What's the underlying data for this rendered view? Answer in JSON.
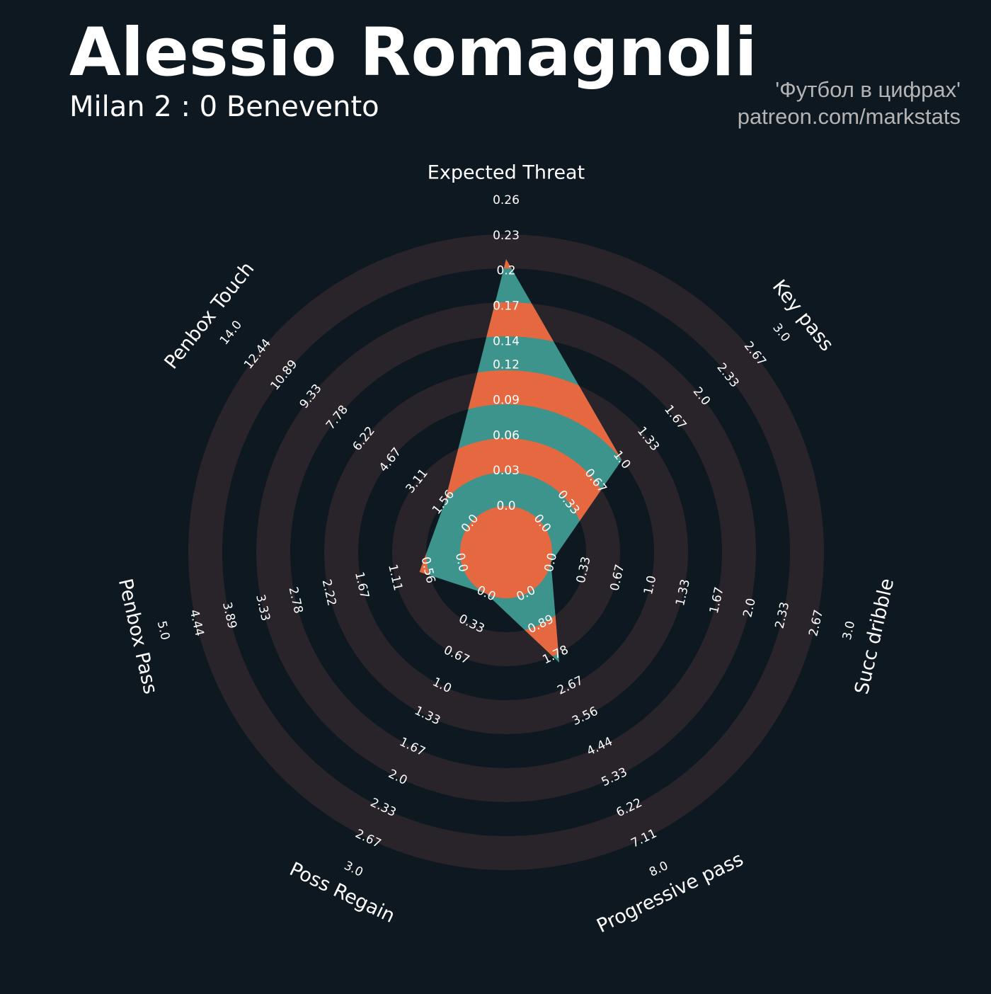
{
  "chart_data": {
    "type": "radar",
    "title": "Alessio Romagnoli",
    "subtitle": "Milan 2 : 0 Benevento",
    "credits": [
      "'Футбол в цифрах'",
      "patreon.com/markstats"
    ],
    "colors": {
      "background": "#0e1820",
      "ring": "#29242a",
      "inside": "#3d948d",
      "highlight": "#e66840"
    },
    "axes": [
      {
        "label": "Expected Threat",
        "lim": [
          0,
          0.26
        ],
        "ticks": [
          {
            "value": 0,
            "label": "0.0"
          },
          0.03,
          0.06,
          0.09,
          0.12,
          0.14,
          0.17,
          0.2,
          0.23,
          0.26
        ]
      },
      {
        "label": "Key pass",
        "lim": [
          0,
          3
        ],
        "ticks": [
          {
            "value": 0,
            "label": "0.0"
          },
          0.33,
          0.67,
          {
            "value": 1,
            "label": "1.0"
          },
          1.33,
          1.67,
          {
            "value": 2,
            "label": "2.0"
          },
          2.33,
          2.67,
          {
            "value": 3,
            "label": "3.0"
          }
        ]
      },
      {
        "label": "Succ dribble",
        "lim": [
          0,
          3
        ],
        "ticks": [
          {
            "value": 0,
            "label": "0.0"
          },
          0.33,
          0.67,
          {
            "value": 1,
            "label": "1.0"
          },
          1.33,
          1.67,
          {
            "value": 2,
            "label": "2.0"
          },
          2.33,
          2.67,
          {
            "value": 3,
            "label": "3.0"
          }
        ]
      },
      {
        "label": "Progressive pass",
        "lim": [
          0,
          8
        ],
        "ticks": [
          {
            "value": 0,
            "label": "0.0"
          },
          0.89,
          1.78,
          2.67,
          3.56,
          4.44,
          5.33,
          6.22,
          7.11,
          {
            "value": 8,
            "label": "8.0"
          }
        ]
      },
      {
        "label": "Poss Regain",
        "lim": [
          0,
          3
        ],
        "ticks": [
          {
            "value": 0,
            "label": "0.0"
          },
          0.33,
          0.67,
          {
            "value": 1,
            "label": "1.0"
          },
          1.33,
          1.67,
          {
            "value": 2,
            "label": "2.0"
          },
          2.33,
          2.67,
          {
            "value": 3,
            "label": "3.0"
          }
        ]
      },
      {
        "label": "Penbox Pass",
        "lim": [
          0,
          5
        ],
        "ticks": [
          {
            "value": 0,
            "label": "0.0"
          },
          0.56,
          1.11,
          1.67,
          2.22,
          2.78,
          3.33,
          3.89,
          4.44,
          {
            "value": 5,
            "label": "5.0"
          }
        ]
      },
      {
        "label": "Penbox Touch",
        "lim": [
          0,
          14
        ],
        "ticks": [
          {
            "value": 0,
            "label": "0.0"
          },
          1.56,
          3.11,
          4.67,
          6.22,
          7.78,
          9.33,
          10.89,
          12.44,
          {
            "value": 14,
            "label": "14.0"
          }
        ]
      }
    ],
    "values": [
      0.21,
      1,
      0,
      2,
      0,
      0.7,
      1.5
    ]
  }
}
